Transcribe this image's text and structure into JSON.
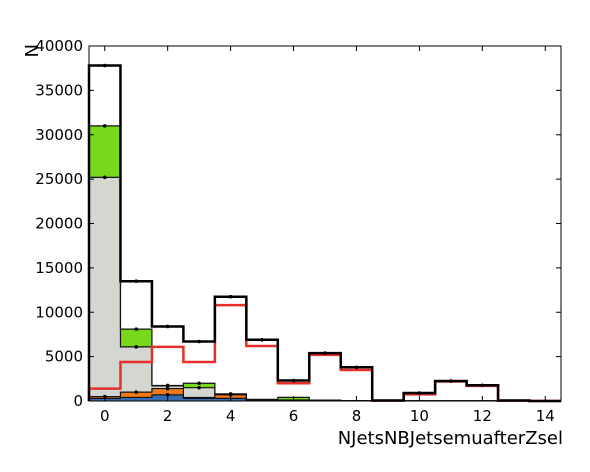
{
  "chart_data": {
    "type": "bar",
    "stacked": true,
    "histogram": true,
    "bin_edges": [
      -0.5,
      0.5,
      1.5,
      2.5,
      3.5,
      4.5,
      5.5,
      6.5,
      7.5,
      8.5,
      9.5,
      10.5,
      11.5,
      12.5,
      13.5,
      14.5
    ],
    "series": [
      {
        "color": "#3a6bb0",
        "values": [
          300,
          400,
          700,
          300,
          300,
          80,
          50,
          30,
          10,
          5,
          5,
          5,
          5,
          0,
          0
        ]
      },
      {
        "color": "#f07a1a",
        "values": [
          200,
          600,
          700,
          100,
          400,
          60,
          40,
          30,
          10,
          5,
          5,
          5,
          5,
          0,
          0
        ]
      },
      {
        "color": "#d4d6d0",
        "values": [
          24700,
          5100,
          300,
          1100,
          50,
          20,
          20,
          20,
          10,
          5,
          5,
          5,
          5,
          0,
          0
        ]
      },
      {
        "color": "#78d91a",
        "values": [
          5800,
          2000,
          50,
          500,
          50,
          20,
          300,
          20,
          10,
          5,
          5,
          5,
          5,
          0,
          0
        ]
      },
      {
        "color": "#ffffff",
        "values": [
          6800,
          5400,
          6650,
          4700,
          10950,
          6720,
          1900,
          5300,
          3760,
          40,
          880,
          2230,
          1750,
          50,
          0
        ]
      }
    ],
    "total": [
      37800,
      13500,
      8400,
      6700,
      11750,
      6900,
      2310,
      5400,
      3800,
      60,
      900,
      2250,
      1770,
      50,
      0
    ],
    "total_color": "#000000",
    "errors": [
      100,
      60,
      40,
      40,
      50,
      30,
      20,
      30,
      30,
      5,
      20,
      20,
      20,
      5,
      0
    ],
    "error_markers_on_stack_tops": true,
    "overlay": {
      "color": "#e8302a",
      "values": [
        1400,
        4400,
        6100,
        4400,
        10800,
        6200,
        2000,
        5200,
        3500,
        40,
        750,
        2200,
        1700,
        40,
        0
      ]
    },
    "xlabel": "NJetsNBJetsemuafterZsel",
    "ylabel": "N",
    "xlim": [
      -0.5,
      14.5
    ],
    "ylim": [
      0,
      40000
    ],
    "xticks": [
      0,
      2,
      4,
      6,
      8,
      10,
      12,
      14
    ],
    "yticks": [
      0,
      5000,
      10000,
      15000,
      20000,
      25000,
      30000,
      35000,
      40000
    ],
    "grid": false
  }
}
